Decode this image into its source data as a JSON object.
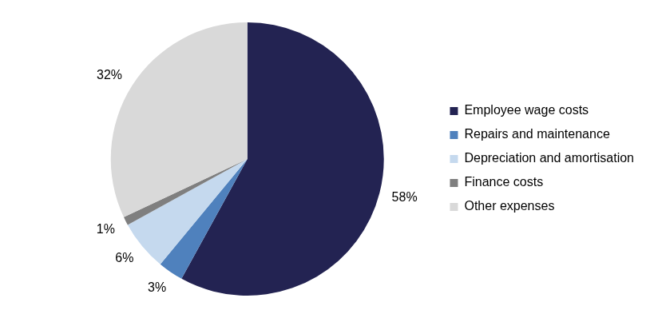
{
  "chart_data": {
    "type": "pie",
    "categories": [
      "Employee wage costs",
      "Repairs and maintenance",
      "Depreciation and amortisation",
      "Finance costs",
      "Other expenses"
    ],
    "values": [
      58,
      3,
      6,
      1,
      32
    ],
    "value_labels": [
      "58%",
      "3%",
      "6%",
      "1%",
      "32%"
    ],
    "colors": [
      "#232352",
      "#4f81bd",
      "#c5d9ee",
      "#7f7f7f",
      "#d9d9d9"
    ],
    "data_labels": true,
    "legend": "right"
  }
}
